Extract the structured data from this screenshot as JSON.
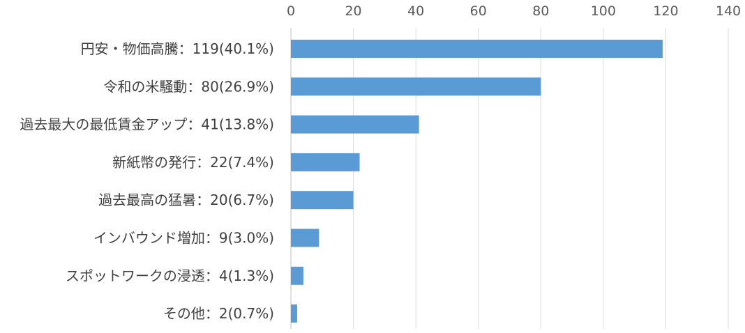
{
  "chart_data": {
    "type": "bar",
    "orientation": "horizontal",
    "title": "",
    "xlabel": "",
    "ylabel": "",
    "xlim": [
      0,
      140
    ],
    "ticks": [
      0,
      20,
      40,
      60,
      80,
      100,
      120,
      140
    ],
    "tick_labels": [
      "0",
      "20",
      "40",
      "60",
      "80",
      "100",
      "120",
      "140"
    ],
    "axis_position": "top",
    "grid": true,
    "bar_color": "#5b9bd5",
    "categories": [
      "円安・物価高騰：119(40.1%)",
      "令和の米騒動：80(26.9%)",
      "過去最大の最低賃金アップ：41(13.8%)",
      "新紙幣の発行：22(7.4%)",
      "過去最高の猛暑：20(6.7%)",
      "インバウンド増加：9(3.0%)",
      "スポットワークの浸透：4(1.3%)",
      "その他：2(0.7%)"
    ],
    "values": [
      119,
      80,
      41,
      22,
      20,
      9,
      4,
      2
    ]
  }
}
